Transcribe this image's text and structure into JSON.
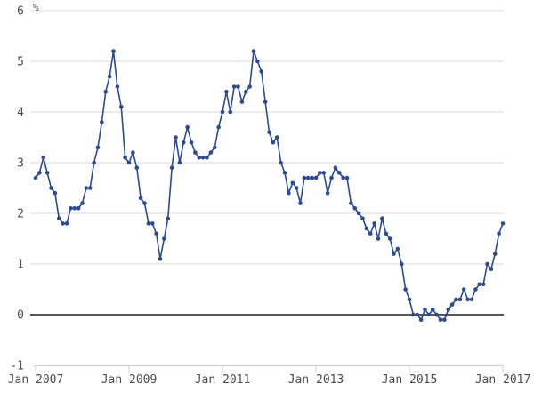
{
  "chart_data": {
    "type": "line",
    "title": "",
    "xlabel": "",
    "ylabel": "%",
    "unit_label": "%",
    "legend_position": "none",
    "grid": "horizontal",
    "x_axis": {
      "start_label": "Jan 2007",
      "end_label": "Jan 2017",
      "frequency": "monthly",
      "tick_labels": [
        "Jan 2007",
        "Jan 2009",
        "Jan 2011",
        "Jan 2013",
        "Jan 2015",
        "Jan 2017"
      ],
      "tick_interval_months": 24
    },
    "y_axis": {
      "min": -1,
      "max": 6,
      "tick_values": [
        6,
        5,
        4,
        3,
        2,
        1,
        0,
        -1
      ],
      "tick_labels": [
        "6",
        "5",
        "4",
        "3",
        "2",
        "1",
        "0",
        "-1"
      ],
      "zero_line": true
    },
    "series": [
      {
        "name": "",
        "marker": "circle",
        "color": "#2c4b94",
        "values": [
          2.7,
          2.8,
          3.1,
          2.8,
          2.5,
          2.4,
          1.9,
          1.8,
          1.8,
          2.1,
          2.1,
          2.1,
          2.2,
          2.5,
          2.5,
          3.0,
          3.3,
          3.8,
          4.4,
          4.7,
          5.2,
          4.5,
          4.1,
          3.1,
          3.0,
          3.2,
          2.9,
          2.3,
          2.2,
          1.8,
          1.8,
          1.6,
          1.1,
          1.5,
          1.9,
          2.9,
          3.5,
          3.0,
          3.4,
          3.7,
          3.4,
          3.2,
          3.1,
          3.1,
          3.1,
          3.2,
          3.3,
          3.7,
          4.0,
          4.4,
          4.0,
          4.5,
          4.5,
          4.2,
          4.4,
          4.5,
          5.2,
          5.0,
          4.8,
          4.2,
          3.6,
          3.4,
          3.5,
          3.0,
          2.8,
          2.4,
          2.6,
          2.5,
          2.2,
          2.7,
          2.7,
          2.7,
          2.7,
          2.8,
          2.8,
          2.4,
          2.7,
          2.9,
          2.8,
          2.7,
          2.7,
          2.2,
          2.1,
          2.0,
          1.9,
          1.7,
          1.6,
          1.8,
          1.5,
          1.9,
          1.6,
          1.5,
          1.2,
          1.3,
          1.0,
          0.5,
          0.3,
          0.0,
          0.0,
          -0.1,
          0.1,
          0.0,
          0.1,
          0.0,
          -0.1,
          -0.1,
          0.1,
          0.2,
          0.3,
          0.3,
          0.5,
          0.3,
          0.3,
          0.5,
          0.6,
          0.6,
          1.0,
          0.9,
          1.2,
          1.6,
          1.8
        ]
      }
    ],
    "colors": {
      "line": "#2c4b94",
      "marker": "#2c4b94",
      "grid": "#d9d9d9",
      "zero_line": "#58585a",
      "axis_line": "#c7d0d9",
      "tick_text": "#4d4d4d"
    }
  }
}
